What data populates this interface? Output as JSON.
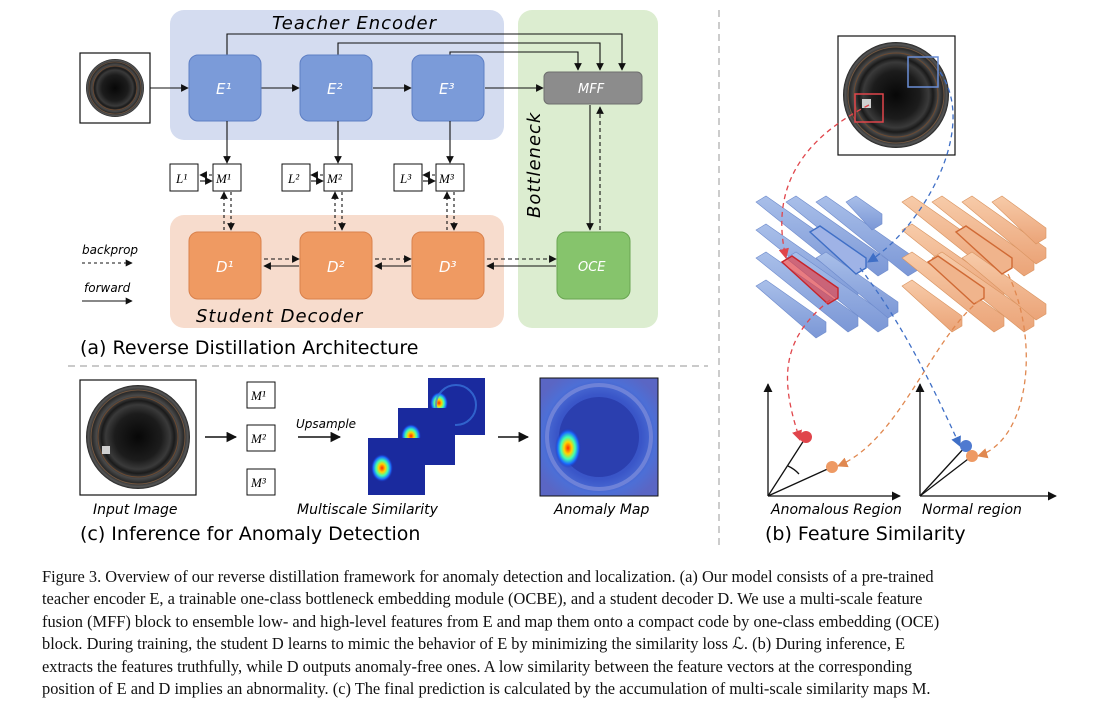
{
  "panel_a": {
    "caption": "(a) Reverse Distillation Architecture",
    "teacher_label": "Teacher Encoder",
    "student_label": "Student Decoder",
    "bottleneck_label": "Bottleneck",
    "encoders": [
      "E¹",
      "E²",
      "E³"
    ],
    "decoders": [
      "D¹",
      "D²",
      "D³"
    ],
    "losses": [
      "L¹",
      "L²",
      "L³"
    ],
    "maps": [
      "M¹",
      "M²",
      "M³"
    ],
    "mff": "MFF",
    "oce": "OCE",
    "legend_backprop": "backprop",
    "legend_forward": "forward"
  },
  "panel_b": {
    "caption": "(b) Feature Similarity",
    "anomalous_label": "Anomalous Region",
    "normal_label": "Normal region"
  },
  "panel_c": {
    "caption": "(c) Inference for Anomaly Detection",
    "input_label": "Input Image",
    "maps": [
      "M¹",
      "M²",
      "M³"
    ],
    "upsample_label": "Upsample",
    "multiscale_label": "Multiscale Similarity",
    "anomaly_label": "Anomaly Map"
  },
  "caption": {
    "lines": [
      "Figure 3. Overview of our reverse distillation framework for anomaly detection and localization. (a) Our model consists of a pre-trained",
      "teacher encoder E, a trainable one-class bottleneck embedding module (OCBE), and a student decoder D. We use a multi-scale feature",
      "fusion (MFF) block to ensemble low- and high-level features from E and map them onto a compact code by one-class embedding (OCE)",
      "block. During training, the student D learns to mimic the behavior of E by minimizing the similarity loss ℒ. (b) During inference, E",
      "extracts the features truthfully, while D outputs anomaly-free ones. A low similarity between the feature vectors at the corresponding",
      "position of E and D implies an abnormality. (c) The final prediction is calculated by the accumulation of multi-scale similarity maps M."
    ]
  },
  "colors": {
    "teacher_bg": "#d4dcf0",
    "student_bg": "#f7dccd",
    "bottleneck_bg": "#dcedd0",
    "encoder_block": "#7b9bd9",
    "decoder_block": "#ef9a62",
    "oce_block": "#86c46c",
    "mff_block": "#8c8c8c",
    "blue_feature": "#8aa6dc",
    "orange_feature": "#f0b48c",
    "red_highlight": "#e0454b",
    "blue_dashed": "#3f6fc6",
    "orange_dashed": "#e08850"
  }
}
